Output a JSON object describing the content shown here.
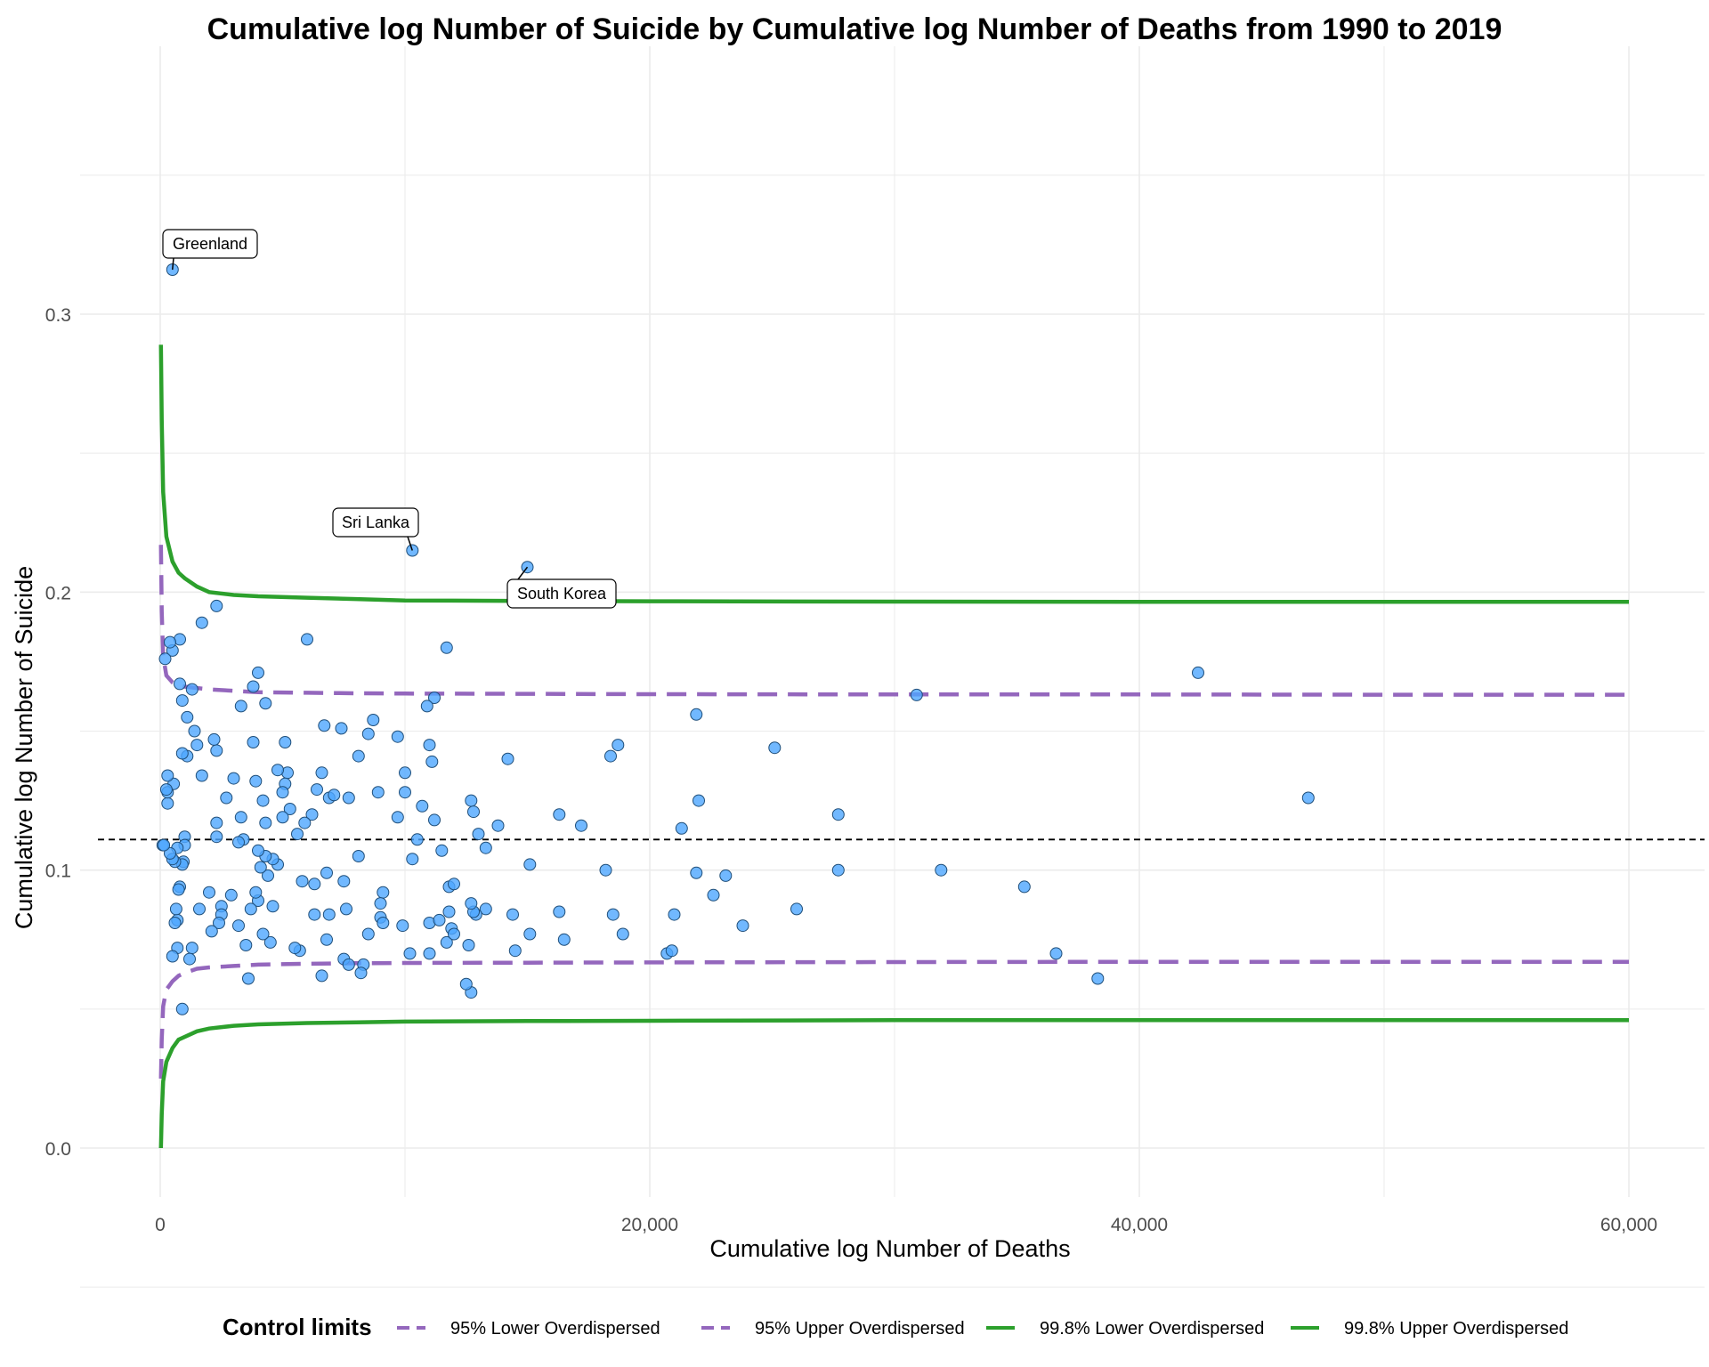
{
  "chart_data": {
    "type": "scatter",
    "title": "Cumulative log Number of Suicide by Cumulative log Number of Deaths from 1990 to 2019",
    "xlabel": "Cumulative log Number of Deaths",
    "ylabel": "Cumulative log Number of Suicide",
    "xlim": [
      -3000,
      63000
    ],
    "ylim": [
      -0.018,
      0.36
    ],
    "x_ticks": [
      0,
      20000,
      40000,
      60000
    ],
    "x_tick_labels": [
      "0",
      "20,000",
      "40,000",
      "60,000"
    ],
    "y_ticks": [
      0.0,
      0.1,
      0.2,
      0.3
    ],
    "y_tick_labels": [
      "0.0",
      "0.1",
      "0.2",
      "0.3"
    ],
    "grid": true,
    "reference_line": {
      "y": 0.111,
      "style": "dashed",
      "color": "#000000"
    },
    "point_color": "#4da6ff",
    "points": [
      [
        500,
        0.316
      ],
      [
        10300,
        0.215
      ],
      [
        15000,
        0.209
      ],
      [
        42400,
        0.171
      ],
      [
        30900,
        0.163
      ],
      [
        46900,
        0.126
      ],
      [
        25100,
        0.144
      ],
      [
        27700,
        0.12
      ],
      [
        27700,
        0.1
      ],
      [
        31900,
        0.1
      ],
      [
        35300,
        0.094
      ],
      [
        36600,
        0.07
      ],
      [
        38300,
        0.061
      ],
      [
        21900,
        0.156
      ],
      [
        22000,
        0.125
      ],
      [
        21900,
        0.099
      ],
      [
        23100,
        0.098
      ],
      [
        22600,
        0.091
      ],
      [
        23800,
        0.08
      ],
      [
        21300,
        0.115
      ],
      [
        21000,
        0.084
      ],
      [
        20700,
        0.07
      ],
      [
        20900,
        0.071
      ],
      [
        26000,
        0.086
      ],
      [
        18700,
        0.145
      ],
      [
        18400,
        0.141
      ],
      [
        17200,
        0.116
      ],
      [
        18200,
        0.1
      ],
      [
        18500,
        0.084
      ],
      [
        18900,
        0.077
      ],
      [
        16300,
        0.12
      ],
      [
        16300,
        0.085
      ],
      [
        16500,
        0.075
      ],
      [
        15100,
        0.102
      ],
      [
        15100,
        0.077
      ],
      [
        14500,
        0.071
      ],
      [
        14400,
        0.084
      ],
      [
        14200,
        0.14
      ],
      [
        13800,
        0.116
      ],
      [
        13300,
        0.108
      ],
      [
        13300,
        0.086
      ],
      [
        13000,
        0.113
      ],
      [
        12900,
        0.084
      ],
      [
        12800,
        0.085
      ],
      [
        12700,
        0.088
      ],
      [
        12700,
        0.125
      ],
      [
        12800,
        0.121
      ],
      [
        12600,
        0.073
      ],
      [
        12700,
        0.056
      ],
      [
        12500,
        0.059
      ],
      [
        11700,
        0.18
      ],
      [
        11200,
        0.162
      ],
      [
        11000,
        0.145
      ],
      [
        11100,
        0.139
      ],
      [
        11200,
        0.118
      ],
      [
        10700,
        0.123
      ],
      [
        10500,
        0.111
      ],
      [
        10300,
        0.104
      ],
      [
        10000,
        0.135
      ],
      [
        10000,
        0.128
      ],
      [
        9700,
        0.148
      ],
      [
        9700,
        0.119
      ],
      [
        9900,
        0.08
      ],
      [
        10200,
        0.07
      ],
      [
        10900,
        0.159
      ],
      [
        11000,
        0.081
      ],
      [
        11000,
        0.07
      ],
      [
        11400,
        0.082
      ],
      [
        11500,
        0.107
      ],
      [
        11800,
        0.085
      ],
      [
        11900,
        0.079
      ],
      [
        11700,
        0.074
      ],
      [
        11800,
        0.094
      ],
      [
        12000,
        0.095
      ],
      [
        12000,
        0.077
      ],
      [
        9100,
        0.092
      ],
      [
        9000,
        0.088
      ],
      [
        9000,
        0.083
      ],
      [
        9100,
        0.081
      ],
      [
        8900,
        0.128
      ],
      [
        8700,
        0.154
      ],
      [
        8500,
        0.149
      ],
      [
        8500,
        0.077
      ],
      [
        8300,
        0.066
      ],
      [
        8200,
        0.063
      ],
      [
        8100,
        0.141
      ],
      [
        8100,
        0.105
      ],
      [
        7700,
        0.126
      ],
      [
        7600,
        0.086
      ],
      [
        7500,
        0.096
      ],
      [
        7500,
        0.068
      ],
      [
        7400,
        0.151
      ],
      [
        7700,
        0.066
      ],
      [
        6700,
        0.152
      ],
      [
        6600,
        0.135
      ],
      [
        6900,
        0.126
      ],
      [
        7100,
        0.127
      ],
      [
        6800,
        0.099
      ],
      [
        6900,
        0.084
      ],
      [
        6800,
        0.075
      ],
      [
        6600,
        0.062
      ],
      [
        6400,
        0.129
      ],
      [
        6200,
        0.12
      ],
      [
        6300,
        0.095
      ],
      [
        6300,
        0.084
      ],
      [
        6000,
        0.183
      ],
      [
        5900,
        0.117
      ],
      [
        5800,
        0.096
      ],
      [
        5700,
        0.071
      ],
      [
        5600,
        0.113
      ],
      [
        5500,
        0.072
      ],
      [
        5300,
        0.122
      ],
      [
        5200,
        0.135
      ],
      [
        5100,
        0.146
      ],
      [
        5100,
        0.131
      ],
      [
        5000,
        0.119
      ],
      [
        5000,
        0.128
      ],
      [
        4800,
        0.102
      ],
      [
        4800,
        0.136
      ],
      [
        4600,
        0.087
      ],
      [
        4600,
        0.104
      ],
      [
        4500,
        0.074
      ],
      [
        4400,
        0.098
      ],
      [
        4300,
        0.117
      ],
      [
        4300,
        0.105
      ],
      [
        4300,
        0.16
      ],
      [
        4200,
        0.125
      ],
      [
        4200,
        0.077
      ],
      [
        4100,
        0.101
      ],
      [
        4000,
        0.171
      ],
      [
        4000,
        0.107
      ],
      [
        4000,
        0.089
      ],
      [
        3900,
        0.092
      ],
      [
        3900,
        0.132
      ],
      [
        3800,
        0.146
      ],
      [
        3800,
        0.166
      ],
      [
        3700,
        0.086
      ],
      [
        3600,
        0.061
      ],
      [
        3500,
        0.073
      ],
      [
        3400,
        0.111
      ],
      [
        3300,
        0.159
      ],
      [
        3300,
        0.119
      ],
      [
        3200,
        0.08
      ],
      [
        3200,
        0.11
      ],
      [
        3000,
        0.133
      ],
      [
        2900,
        0.091
      ],
      [
        2700,
        0.126
      ],
      [
        2500,
        0.087
      ],
      [
        2500,
        0.084
      ],
      [
        2400,
        0.081
      ],
      [
        2300,
        0.112
      ],
      [
        2300,
        0.117
      ],
      [
        2300,
        0.143
      ],
      [
        2300,
        0.195
      ],
      [
        2200,
        0.147
      ],
      [
        2100,
        0.078
      ],
      [
        2000,
        0.092
      ],
      [
        1700,
        0.134
      ],
      [
        1700,
        0.189
      ],
      [
        1600,
        0.086
      ],
      [
        1500,
        0.145
      ],
      [
        1400,
        0.15
      ],
      [
        1300,
        0.072
      ],
      [
        1300,
        0.165
      ],
      [
        1200,
        0.068
      ],
      [
        1100,
        0.141
      ],
      [
        1100,
        0.155
      ],
      [
        1000,
        0.112
      ],
      [
        1000,
        0.109
      ],
      [
        950,
        0.103
      ],
      [
        900,
        0.102
      ],
      [
        900,
        0.142
      ],
      [
        900,
        0.161
      ],
      [
        900,
        0.05
      ],
      [
        800,
        0.167
      ],
      [
        800,
        0.183
      ],
      [
        800,
        0.094
      ],
      [
        750,
        0.093
      ],
      [
        700,
        0.072
      ],
      [
        700,
        0.082
      ],
      [
        700,
        0.108
      ],
      [
        650,
        0.086
      ],
      [
        600,
        0.103
      ],
      [
        600,
        0.081
      ],
      [
        550,
        0.131
      ],
      [
        500,
        0.069
      ],
      [
        500,
        0.104
      ],
      [
        500,
        0.179
      ],
      [
        400,
        0.106
      ],
      [
        400,
        0.182
      ],
      [
        300,
        0.124
      ],
      [
        300,
        0.128
      ],
      [
        300,
        0.134
      ],
      [
        250,
        0.129
      ],
      [
        200,
        0.176
      ],
      [
        100,
        0.109
      ],
      [
        150,
        0.109
      ]
    ],
    "annotations": [
      {
        "label": "Greenland",
        "x": 500,
        "y": 0.316
      },
      {
        "label": "Sri Lanka",
        "x": 10300,
        "y": 0.215
      },
      {
        "label": "South Korea",
        "x": 15000,
        "y": 0.209
      }
    ],
    "control_limits": {
      "x": [
        30,
        60,
        120,
        250,
        500,
        750,
        1000,
        1500,
        2000,
        3000,
        4000,
        6000,
        8000,
        10000,
        15000,
        20000,
        30000,
        40000,
        50000,
        60000
      ],
      "lower_95": [
        0.025,
        0.039,
        0.051,
        0.057,
        0.06,
        0.062,
        0.063,
        0.0645,
        0.065,
        0.0655,
        0.066,
        0.0663,
        0.0665,
        0.0666,
        0.0667,
        0.0668,
        0.0669,
        0.067,
        0.067,
        0.067
      ],
      "upper_95": [
        0.217,
        0.193,
        0.177,
        0.17,
        0.1675,
        0.1665,
        0.166,
        0.1655,
        0.165,
        0.1645,
        0.164,
        0.1638,
        0.1636,
        0.1635,
        0.1634,
        0.1633,
        0.1632,
        0.1632,
        0.1631,
        0.1631
      ],
      "lower_998": [
        0.0,
        0.012,
        0.024,
        0.031,
        0.036,
        0.039,
        0.04,
        0.042,
        0.043,
        0.044,
        0.0445,
        0.045,
        0.0452,
        0.0455,
        0.0457,
        0.0458,
        0.046,
        0.046,
        0.046,
        0.046
      ],
      "upper_998": [
        0.289,
        0.262,
        0.236,
        0.22,
        0.211,
        0.207,
        0.205,
        0.202,
        0.2,
        0.199,
        0.1985,
        0.198,
        0.1975,
        0.197,
        0.1968,
        0.1967,
        0.1966,
        0.1965,
        0.1965,
        0.1965
      ]
    },
    "legend": {
      "title": "Control limits",
      "position": "bottom",
      "entries": [
        {
          "label": "95% Lower Overdispersed",
          "color": "#9467bd",
          "style": "dashed"
        },
        {
          "label": "95% Upper Overdispersed",
          "color": "#9467bd",
          "style": "dashed"
        },
        {
          "label": "99.8% Lower Overdispersed",
          "color": "#2ca02c",
          "style": "solid"
        },
        {
          "label": "99.8% Upper Overdispersed",
          "color": "#2ca02c",
          "style": "solid"
        }
      ]
    }
  }
}
